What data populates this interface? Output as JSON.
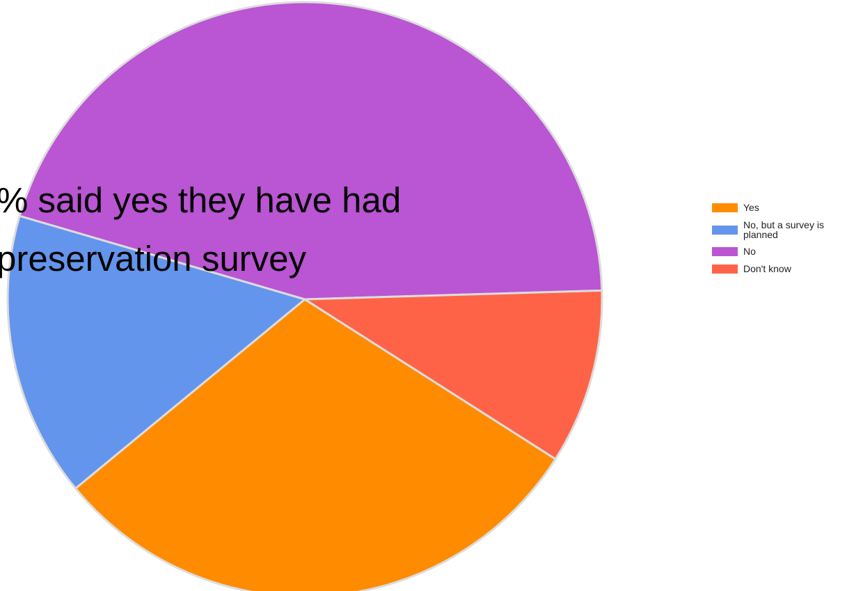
{
  "chart_data": {
    "type": "pie",
    "title": "",
    "categories": [
      "Yes",
      "No, but a survey is planned",
      "No",
      "Don't know"
    ],
    "values": [
      30,
      15.5,
      45,
      9.5
    ],
    "unit": "%",
    "colors": [
      "#FF8C00",
      "#6495ED",
      "#BA55D3",
      "#FF6347"
    ],
    "legend_position": "right"
  },
  "overlay": {
    "line1": "% said yes they have had",
    "line2": "preservation survey"
  },
  "legend": {
    "items": [
      {
        "label": "Yes",
        "color": "#FF8C00"
      },
      {
        "label": "No, but a survey is planned",
        "color": "#6495ED"
      },
      {
        "label": "No",
        "color": "#BA55D3"
      },
      {
        "label": "Don't know",
        "color": "#FF6347"
      }
    ]
  }
}
